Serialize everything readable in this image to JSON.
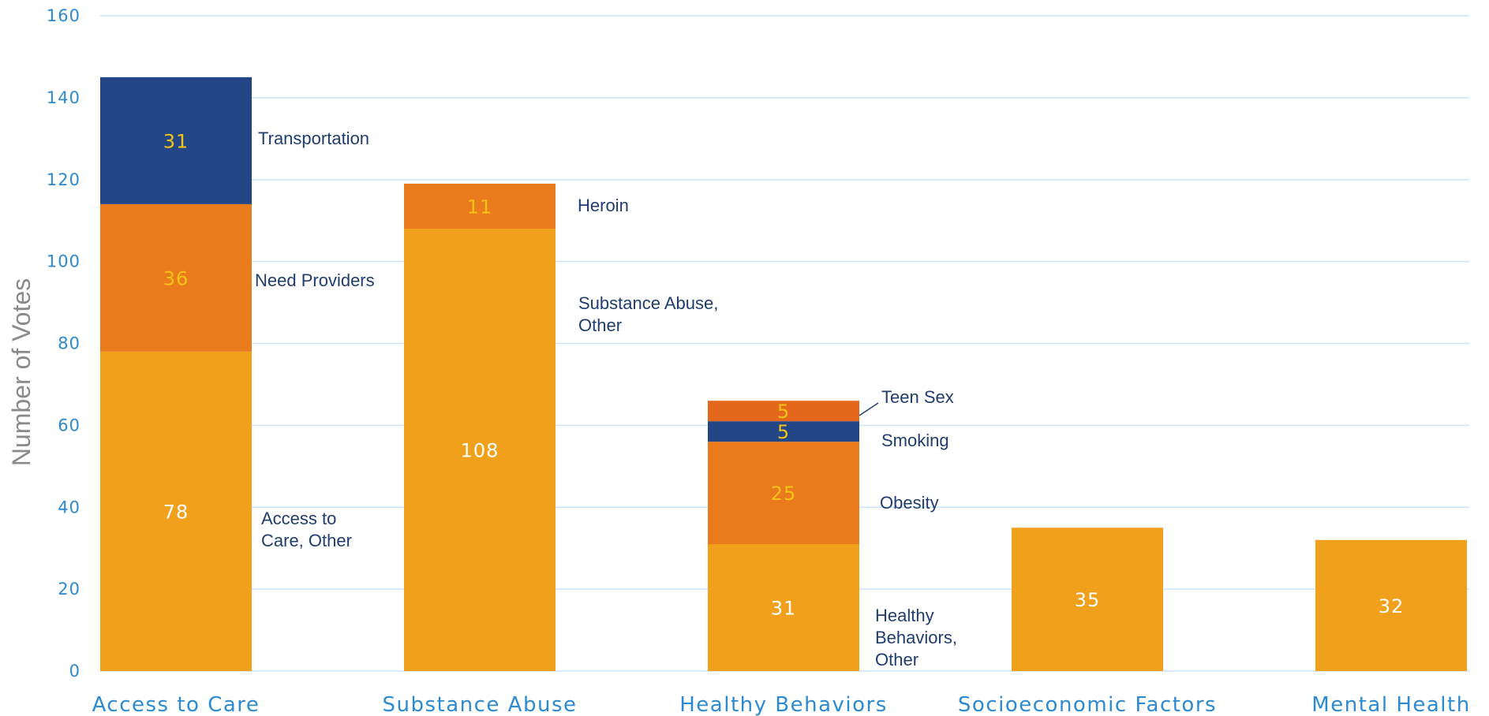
{
  "chart_data": {
    "type": "bar",
    "stacked": true,
    "title": "",
    "xlabel": "",
    "ylabel": "Number of Votes",
    "ylim": [
      0,
      160
    ],
    "yticks": [
      0,
      20,
      40,
      60,
      80,
      100,
      120,
      140,
      160
    ],
    "grid": true,
    "categories": [
      "Access to Care",
      "Substance Abuse",
      "Healthy Behaviors",
      "Socioeconomic Factors",
      "Mental Health"
    ],
    "bars": [
      {
        "category": "Access to Care",
        "segments": [
          {
            "label": "Access to Care, Other",
            "value": 78,
            "color": "#f0a01a",
            "value_color": "#ffffff"
          },
          {
            "label": "Need Providers",
            "value": 36,
            "color": "#e97b1c",
            "value_color": "#f5c31a"
          },
          {
            "label": "Transportation",
            "value": 31,
            "color": "#234686",
            "value_color": "#f5c31a"
          }
        ]
      },
      {
        "category": "Substance Abuse",
        "segments": [
          {
            "label": "Substance Abuse, Other",
            "value": 108,
            "color": "#f0a01a",
            "value_color": "#ffffff"
          },
          {
            "label": "Heroin",
            "value": 11,
            "color": "#e97b1c",
            "value_color": "#f5c31a"
          }
        ]
      },
      {
        "category": "Healthy Behaviors",
        "segments": [
          {
            "label": "Healthy Behaviors, Other",
            "value": 31,
            "color": "#f0a01a",
            "value_color": "#ffffff"
          },
          {
            "label": "Obesity",
            "value": 25,
            "color": "#e97b1c",
            "value_color": "#f5c31a"
          },
          {
            "label": "Smoking",
            "value": 5,
            "color": "#234686",
            "value_color": "#f5c31a"
          },
          {
            "label": "Teen Sex",
            "value": 5,
            "color": "#e5671c",
            "value_color": "#f5c31a"
          }
        ]
      },
      {
        "category": "Socioeconomic Factors",
        "segments": [
          {
            "label": "",
            "value": 35,
            "color": "#f0a01a",
            "value_color": "#ffffff"
          }
        ]
      },
      {
        "category": "Mental Health",
        "segments": [
          {
            "label": "",
            "value": 32,
            "color": "#f0a01a",
            "value_color": "#ffffff"
          }
        ]
      }
    ],
    "annotations": [
      {
        "bar": 0,
        "lines": [
          "Transportation"
        ]
      },
      {
        "bar": 0,
        "lines": [
          "Need Providers"
        ]
      },
      {
        "bar": 0,
        "lines": [
          "Access to",
          "Care, Other"
        ]
      },
      {
        "bar": 1,
        "lines": [
          "Heroin"
        ]
      },
      {
        "bar": 1,
        "lines": [
          "Substance Abuse,",
          "Other"
        ]
      },
      {
        "bar": 2,
        "lines": [
          "Teen Sex"
        ]
      },
      {
        "bar": 2,
        "lines": [
          "Smoking"
        ]
      },
      {
        "bar": 2,
        "lines": [
          "Obesity"
        ]
      },
      {
        "bar": 2,
        "lines": [
          "Healthy",
          "Behaviors,",
          "Other"
        ]
      }
    ],
    "colors": {
      "grid": "#cfe3f6",
      "tick_text": "#2b8ad1",
      "axis_title": "#8a8a8a",
      "annotation_text": "#1f3d6e"
    }
  }
}
